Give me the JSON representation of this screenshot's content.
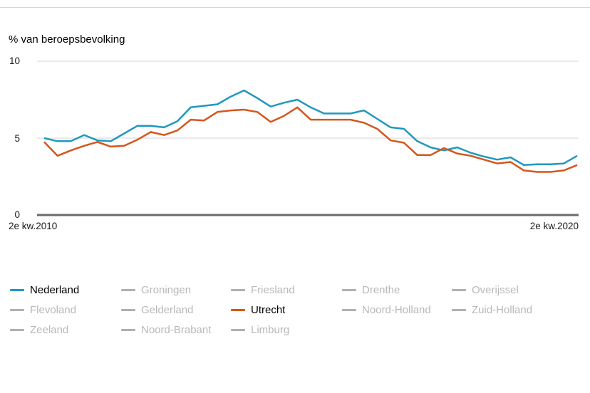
{
  "title": "% van beroepsbevolking",
  "colors": {
    "nederland": "#2098bd",
    "utrecht": "#d5561d",
    "inactive_swatch": "#b0b0b0",
    "inactive_text": "#b8b8b8",
    "gridline": "#e4e4e4",
    "axis": "#6b6b6b"
  },
  "y_axis": {
    "tick_10": "10",
    "tick_5": "5",
    "tick_0": "0"
  },
  "x_axis": {
    "left_label": "2e kw.2010",
    "right_label": "2e kw.2020"
  },
  "chart_data": {
    "type": "line",
    "title": "% van beroepsbevolking",
    "ylabel": "% van beroepsbevolking",
    "ylim": [
      0,
      10
    ],
    "yticks": [
      0,
      5,
      10
    ],
    "grid": "horizontal",
    "legend_position": "bottom",
    "x_start": "2e kw.2010",
    "x_end": "2e kw.2020",
    "x_frequency": "quarterly",
    "n_points": 41,
    "series": [
      {
        "name": "Nederland",
        "color": "#2098bd",
        "values": [
          5.0,
          4.8,
          4.8,
          5.2,
          4.85,
          4.8,
          5.3,
          5.8,
          5.8,
          5.7,
          6.1,
          7.0,
          7.1,
          7.2,
          7.7,
          8.1,
          7.6,
          7.05,
          7.3,
          7.5,
          7.0,
          6.6,
          6.6,
          6.6,
          6.8,
          6.25,
          5.7,
          5.6,
          4.8,
          4.4,
          4.2,
          4.4,
          4.05,
          3.8,
          3.6,
          3.75,
          3.25,
          3.3,
          3.3,
          3.35,
          3.85
        ]
      },
      {
        "name": "Utrecht",
        "color": "#d5561d",
        "values": [
          4.75,
          3.85,
          4.2,
          4.5,
          4.75,
          4.45,
          4.5,
          4.9,
          5.4,
          5.2,
          5.5,
          6.2,
          6.15,
          6.7,
          6.8,
          6.85,
          6.7,
          6.05,
          6.45,
          7.0,
          6.2,
          6.2,
          6.2,
          6.2,
          6.0,
          5.6,
          4.85,
          4.7,
          3.9,
          3.9,
          4.35,
          4.0,
          3.85,
          3.6,
          3.35,
          3.45,
          2.9,
          2.8,
          2.8,
          2.9,
          3.25
        ]
      }
    ]
  },
  "legend": {
    "items": [
      {
        "label": "Nederland",
        "active": true,
        "color": "#2098bd"
      },
      {
        "label": "Groningen",
        "active": false,
        "color": "#b0b0b0"
      },
      {
        "label": "Friesland",
        "active": false,
        "color": "#b0b0b0"
      },
      {
        "label": "Drenthe",
        "active": false,
        "color": "#b0b0b0"
      },
      {
        "label": "Overijssel",
        "active": false,
        "color": "#b0b0b0"
      },
      {
        "label": "Flevoland",
        "active": false,
        "color": "#b0b0b0"
      },
      {
        "label": "Gelderland",
        "active": false,
        "color": "#b0b0b0"
      },
      {
        "label": "Utrecht",
        "active": true,
        "color": "#d5561d"
      },
      {
        "label": "Noord-Holland",
        "active": false,
        "color": "#b0b0b0"
      },
      {
        "label": "Zuid-Holland",
        "active": false,
        "color": "#b0b0b0"
      },
      {
        "label": "Zeeland",
        "active": false,
        "color": "#b0b0b0"
      },
      {
        "label": "Noord-Brabant",
        "active": false,
        "color": "#b0b0b0"
      },
      {
        "label": "Limburg",
        "active": false,
        "color": "#b0b0b0"
      }
    ]
  }
}
